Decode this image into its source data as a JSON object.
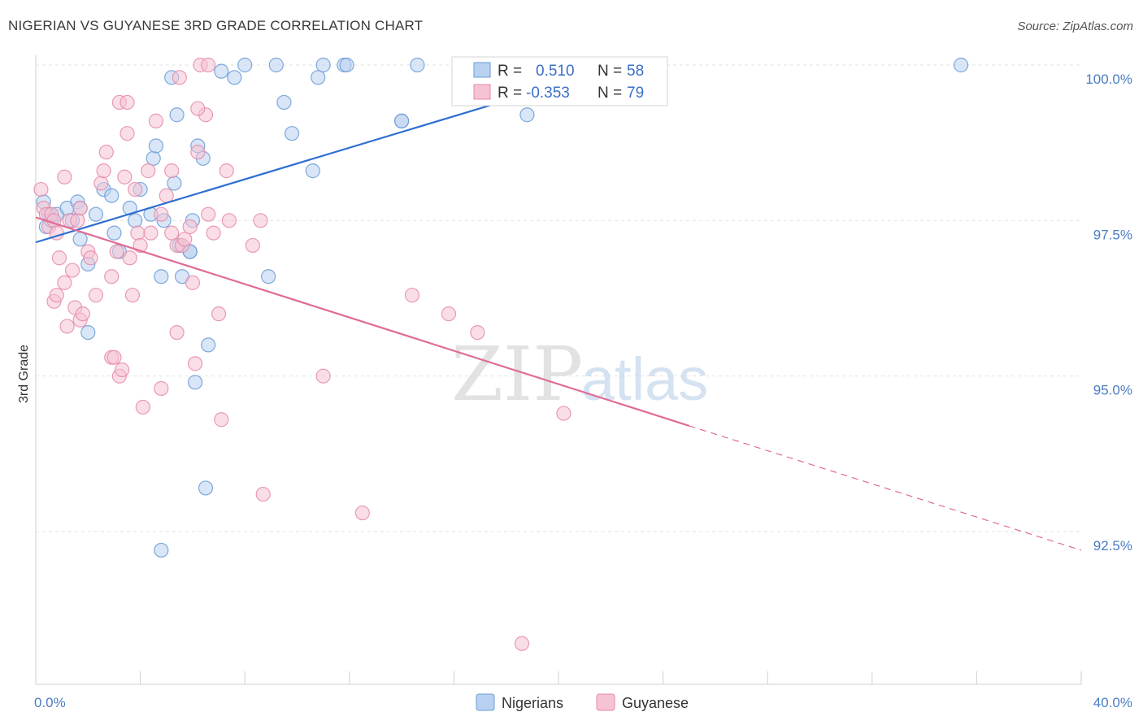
{
  "header": {
    "title": "NIGERIAN VS GUYANESE 3RD GRADE CORRELATION CHART",
    "source": "Source: ZipAtlas.com"
  },
  "watermark": {
    "zip": "ZIP",
    "atlas": "atlas"
  },
  "chart_data": {
    "type": "scatter",
    "ylabel": "3rd Grade",
    "xlim": [
      0,
      40
    ],
    "ylim": [
      90.5,
      100.2
    ],
    "x_tick_labels": [
      {
        "value": 0,
        "label": "0.0%"
      },
      {
        "value": 40,
        "label": "40.0%"
      }
    ],
    "y_ticks": [
      {
        "value": 100,
        "label": "100.0%"
      },
      {
        "value": 97.5,
        "label": "97.5%"
      },
      {
        "value": 95,
        "label": "95.0%"
      },
      {
        "value": 92.5,
        "label": "92.5%"
      }
    ],
    "grid": true,
    "legend": {
      "position": "top-center",
      "entries": [
        {
          "r_label": "R =",
          "r_value": "0.510",
          "n_label": "N =",
          "n_value": "58"
        },
        {
          "r_label": "R =",
          "r_value": "-0.353",
          "n_label": "N =",
          "n_value": "79"
        }
      ]
    },
    "series": [
      {
        "name": "Nigerians",
        "color": "#6a9ad6",
        "fill": "#b9d1f0",
        "trend": {
          "x0": 0,
          "y0": 97.15,
          "x1": 22.5,
          "y1": 100.0,
          "dashed_to": null
        },
        "points": [
          [
            0.3,
            97.8
          ],
          [
            0.5,
            97.6
          ],
          [
            0.4,
            97.4
          ],
          [
            0.8,
            97.6
          ],
          [
            1.2,
            97.7
          ],
          [
            0.6,
            97.5
          ],
          [
            1.6,
            97.8
          ],
          [
            1.7,
            97.7
          ],
          [
            1.4,
            97.5
          ],
          [
            1.7,
            97.2
          ],
          [
            2.0,
            96.8
          ],
          [
            2.6,
            98.0
          ],
          [
            2.9,
            97.9
          ],
          [
            3.0,
            97.3
          ],
          [
            3.2,
            97.0
          ],
          [
            2.0,
            95.7
          ],
          [
            3.8,
            97.5
          ],
          [
            3.6,
            97.7
          ],
          [
            4.0,
            98.0
          ],
          [
            4.4,
            97.6
          ],
          [
            4.5,
            98.5
          ],
          [
            4.6,
            98.7
          ],
          [
            4.8,
            96.6
          ],
          [
            4.9,
            97.5
          ],
          [
            5.3,
            98.1
          ],
          [
            5.5,
            97.1
          ],
          [
            5.6,
            96.6
          ],
          [
            5.9,
            97.0
          ],
          [
            5.9,
            97.0
          ],
          [
            6.0,
            97.5
          ],
          [
            5.2,
            99.8
          ],
          [
            5.4,
            99.2
          ],
          [
            6.1,
            94.9
          ],
          [
            6.2,
            98.7
          ],
          [
            6.4,
            98.5
          ],
          [
            6.6,
            95.5
          ],
          [
            7.1,
            99.9
          ],
          [
            7.6,
            99.8
          ],
          [
            8.0,
            100.0
          ],
          [
            8.9,
            96.6
          ],
          [
            9.2,
            100.0
          ],
          [
            9.5,
            99.4
          ],
          [
            9.8,
            98.9
          ],
          [
            10.6,
            98.3
          ],
          [
            10.8,
            99.8
          ],
          [
            11.0,
            100.0
          ],
          [
            11.8,
            100.0
          ],
          [
            11.9,
            100.0
          ],
          [
            14.0,
            99.1
          ],
          [
            14.6,
            100.0
          ],
          [
            16.2,
            100.0
          ],
          [
            16.7,
            100.0
          ],
          [
            18.8,
            99.2
          ],
          [
            6.5,
            93.2
          ],
          [
            4.8,
            92.2
          ],
          [
            35.4,
            100.0
          ],
          [
            14.0,
            99.1
          ],
          [
            2.3,
            97.6
          ]
        ]
      },
      {
        "name": "Guyanese",
        "color": "#e58aa9",
        "fill": "#f6c3d4",
        "trend": {
          "x0": 0,
          "y0": 97.55,
          "x1": 25.0,
          "y1": 94.2,
          "dashed_to": {
            "x": 40,
            "y": 92.2
          }
        },
        "points": [
          [
            0.2,
            98.0
          ],
          [
            0.3,
            97.7
          ],
          [
            0.4,
            97.6
          ],
          [
            0.5,
            97.4
          ],
          [
            0.6,
            97.6
          ],
          [
            0.7,
            97.5
          ],
          [
            0.8,
            97.3
          ],
          [
            1.1,
            98.2
          ],
          [
            1.3,
            97.5
          ],
          [
            1.6,
            97.5
          ],
          [
            1.7,
            97.7
          ],
          [
            0.9,
            96.9
          ],
          [
            1.1,
            96.5
          ],
          [
            1.4,
            96.7
          ],
          [
            0.7,
            96.2
          ],
          [
            0.8,
            96.3
          ],
          [
            1.2,
            95.8
          ],
          [
            1.5,
            96.1
          ],
          [
            1.7,
            95.9
          ],
          [
            1.8,
            96.0
          ],
          [
            2.0,
            97.0
          ],
          [
            2.1,
            96.9
          ],
          [
            2.3,
            96.3
          ],
          [
            2.5,
            98.1
          ],
          [
            2.6,
            98.3
          ],
          [
            2.7,
            98.6
          ],
          [
            2.9,
            96.6
          ],
          [
            2.9,
            95.3
          ],
          [
            3.1,
            97.0
          ],
          [
            3.2,
            95.0
          ],
          [
            3.4,
            98.2
          ],
          [
            3.5,
            98.9
          ],
          [
            3.6,
            96.9
          ],
          [
            3.7,
            96.3
          ],
          [
            3.8,
            98.0
          ],
          [
            3.2,
            99.4
          ],
          [
            3.5,
            99.4
          ],
          [
            3.9,
            97.3
          ],
          [
            4.0,
            97.1
          ],
          [
            4.4,
            97.3
          ],
          [
            4.3,
            98.3
          ],
          [
            4.6,
            99.1
          ],
          [
            4.8,
            97.6
          ],
          [
            5.0,
            97.9
          ],
          [
            5.2,
            98.3
          ],
          [
            5.2,
            97.3
          ],
          [
            5.4,
            97.1
          ],
          [
            5.6,
            97.1
          ],
          [
            5.7,
            97.2
          ],
          [
            5.9,
            97.4
          ],
          [
            6.0,
            96.5
          ],
          [
            6.1,
            95.2
          ],
          [
            6.2,
            98.6
          ],
          [
            6.5,
            99.2
          ],
          [
            6.6,
            97.6
          ],
          [
            6.8,
            97.3
          ],
          [
            7.0,
            96.0
          ],
          [
            7.1,
            94.3
          ],
          [
            7.3,
            98.3
          ],
          [
            7.4,
            97.5
          ],
          [
            8.3,
            97.1
          ],
          [
            8.6,
            97.5
          ],
          [
            8.7,
            93.1
          ],
          [
            11.0,
            95.0
          ],
          [
            12.5,
            92.8
          ],
          [
            14.4,
            96.3
          ],
          [
            15.8,
            96.0
          ],
          [
            16.9,
            95.7
          ],
          [
            18.6,
            90.7
          ],
          [
            20.2,
            94.4
          ],
          [
            6.3,
            100.0
          ],
          [
            6.6,
            100.0
          ],
          [
            5.5,
            99.8
          ],
          [
            6.2,
            99.3
          ],
          [
            4.8,
            94.8
          ],
          [
            4.1,
            94.5
          ],
          [
            3.0,
            95.3
          ],
          [
            5.4,
            95.7
          ],
          [
            3.3,
            95.1
          ]
        ]
      }
    ]
  },
  "bottom_legend": [
    {
      "label": "Nigerians"
    },
    {
      "label": "Guyanese"
    }
  ]
}
